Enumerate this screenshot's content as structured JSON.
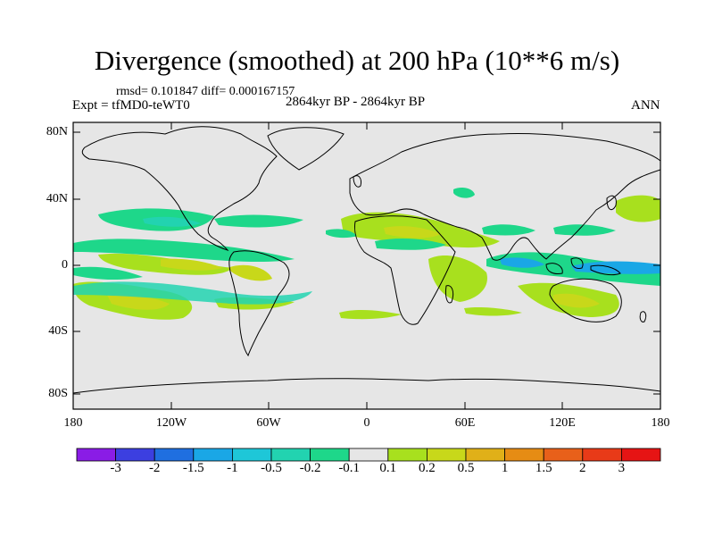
{
  "title": "Divergence (smoothed) at 200 hPa (10**6 m/s)",
  "stats": "rmsd= 0.101847 diff= 0.000167157",
  "experiment": "Expt = tfMD0-teWT0",
  "period": "2864kyr BP - 2864kyr BP",
  "season": "ANN",
  "lat_labels": [
    "80N",
    "40N",
    "0",
    "40S",
    "80S"
  ],
  "lon_labels": [
    "180",
    "120W",
    "60W",
    "0",
    "60E",
    "120E",
    "180"
  ],
  "colorbar": {
    "labels": [
      "-3",
      "-2",
      "-1.5",
      "-1",
      "-0.5",
      "-0.2",
      "-0.1",
      "0.1",
      "0.2",
      "0.5",
      "1",
      "1.5",
      "2",
      "3"
    ],
    "colors": [
      "#8a1ce6",
      "#3c3fe0",
      "#1f6fe0",
      "#1aa7e6",
      "#1ec7d8",
      "#22d3b0",
      "#1ed78a",
      "#e6e6e6",
      "#a8e01e",
      "#c8d81a",
      "#e0b018",
      "#e68c14",
      "#e8601a",
      "#e83a18",
      "#e61414"
    ]
  },
  "colors": {
    "background": "#e6e6e6",
    "coast": "#000000"
  }
}
